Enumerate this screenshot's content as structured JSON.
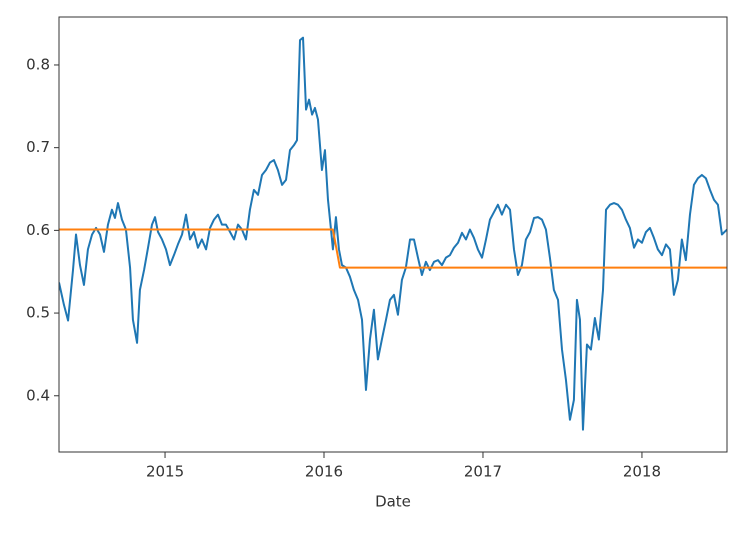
{
  "chart_data": {
    "type": "line",
    "xlabel": "Date",
    "xlim": [
      2014.333,
      2018.535
    ],
    "xticks": [
      2015,
      2016,
      2017,
      2018
    ],
    "ylim": [
      0.332,
      0.858
    ],
    "yticks": [
      0.4,
      0.5,
      0.6,
      0.7,
      0.8
    ],
    "series": [
      {
        "color": "#1f77b4",
        "x": [
          2014.333,
          2014.364,
          2014.39,
          2014.421,
          2014.44,
          2014.465,
          2014.49,
          2014.515,
          2014.541,
          2014.566,
          2014.591,
          2014.616,
          2014.641,
          2014.666,
          2014.685,
          2014.704,
          2014.729,
          2014.754,
          2014.78,
          2014.798,
          2014.824,
          2014.842,
          2014.868,
          2014.893,
          2014.918,
          2014.937,
          2014.956,
          2014.981,
          2015.006,
          2015.031,
          2015.056,
          2015.081,
          2015.107,
          2015.132,
          2015.157,
          2015.182,
          2015.207,
          2015.232,
          2015.258,
          2015.283,
          2015.308,
          2015.333,
          2015.358,
          2015.383,
          2015.409,
          2015.434,
          2015.459,
          2015.484,
          2015.509,
          2015.534,
          2015.559,
          2015.585,
          2015.61,
          2015.635,
          2015.66,
          2015.685,
          2015.71,
          2015.736,
          2015.761,
          2015.786,
          2015.811,
          2015.83,
          2015.849,
          2015.868,
          2015.887,
          2015.906,
          2015.925,
          2015.943,
          2015.962,
          2015.987,
          2016.006,
          2016.025,
          2016.044,
          2016.056,
          2016.075,
          2016.094,
          2016.113,
          2016.138,
          2016.163,
          2016.188,
          2016.214,
          2016.239,
          2016.264,
          2016.289,
          2016.314,
          2016.339,
          2016.364,
          2016.39,
          2016.415,
          2016.44,
          2016.465,
          2016.49,
          2016.515,
          2016.541,
          2016.566,
          2016.591,
          2016.616,
          2016.641,
          2016.666,
          2016.692,
          2016.717,
          2016.742,
          2016.767,
          2016.792,
          2016.817,
          2016.843,
          2016.868,
          2016.893,
          2016.918,
          2016.943,
          2016.968,
          2016.994,
          2017.019,
          2017.044,
          2017.069,
          2017.094,
          2017.119,
          2017.145,
          2017.17,
          2017.195,
          2017.22,
          2017.245,
          2017.27,
          2017.296,
          2017.321,
          2017.346,
          2017.371,
          2017.396,
          2017.421,
          2017.446,
          2017.472,
          2017.497,
          2017.522,
          2017.547,
          2017.572,
          2017.591,
          2017.61,
          2017.629,
          2017.654,
          2017.679,
          2017.704,
          2017.729,
          2017.755,
          2017.774,
          2017.799,
          2017.824,
          2017.849,
          2017.874,
          2017.899,
          2017.924,
          2017.95,
          2017.975,
          2018.0,
          2018.025,
          2018.05,
          2018.075,
          2018.1,
          2018.126,
          2018.151,
          2018.176,
          2018.201,
          2018.226,
          2018.251,
          2018.276,
          2018.302,
          2018.327,
          2018.352,
          2018.377,
          2018.402,
          2018.428,
          2018.453,
          2018.478,
          2018.503,
          2018.535
        ],
        "values": [
          0.537,
          0.51,
          0.491,
          0.552,
          0.595,
          0.558,
          0.534,
          0.577,
          0.595,
          0.603,
          0.595,
          0.574,
          0.607,
          0.625,
          0.615,
          0.633,
          0.613,
          0.601,
          0.555,
          0.492,
          0.464,
          0.528,
          0.552,
          0.579,
          0.607,
          0.616,
          0.598,
          0.589,
          0.577,
          0.558,
          0.57,
          0.583,
          0.595,
          0.619,
          0.589,
          0.598,
          0.579,
          0.589,
          0.577,
          0.603,
          0.613,
          0.619,
          0.607,
          0.607,
          0.598,
          0.589,
          0.607,
          0.601,
          0.589,
          0.625,
          0.649,
          0.643,
          0.667,
          0.673,
          0.682,
          0.685,
          0.673,
          0.655,
          0.661,
          0.697,
          0.703,
          0.709,
          0.83,
          0.833,
          0.746,
          0.758,
          0.74,
          0.748,
          0.734,
          0.673,
          0.697,
          0.637,
          0.601,
          0.577,
          0.616,
          0.577,
          0.558,
          0.555,
          0.544,
          0.528,
          0.516,
          0.492,
          0.407,
          0.468,
          0.504,
          0.444,
          0.468,
          0.492,
          0.516,
          0.522,
          0.498,
          0.54,
          0.555,
          0.589,
          0.589,
          0.567,
          0.546,
          0.562,
          0.552,
          0.562,
          0.564,
          0.558,
          0.567,
          0.57,
          0.579,
          0.585,
          0.597,
          0.589,
          0.601,
          0.591,
          0.577,
          0.567,
          0.589,
          0.613,
          0.622,
          0.631,
          0.619,
          0.631,
          0.625,
          0.577,
          0.546,
          0.558,
          0.589,
          0.598,
          0.615,
          0.616,
          0.613,
          0.601,
          0.567,
          0.528,
          0.516,
          0.456,
          0.419,
          0.371,
          0.395,
          0.516,
          0.492,
          0.359,
          0.462,
          0.456,
          0.494,
          0.468,
          0.528,
          0.625,
          0.631,
          0.633,
          0.631,
          0.625,
          0.613,
          0.603,
          0.579,
          0.589,
          0.585,
          0.598,
          0.603,
          0.591,
          0.577,
          0.57,
          0.583,
          0.577,
          0.522,
          0.54,
          0.589,
          0.564,
          0.619,
          0.655,
          0.663,
          0.667,
          0.663,
          0.649,
          0.637,
          0.631,
          0.595,
          0.601
        ]
      },
      {
        "color": "#ff7f0e",
        "x": [
          2014.333,
          2016.056,
          2016.1,
          2018.535
        ],
        "values": [
          0.601,
          0.601,
          0.555,
          0.555
        ]
      }
    ]
  }
}
